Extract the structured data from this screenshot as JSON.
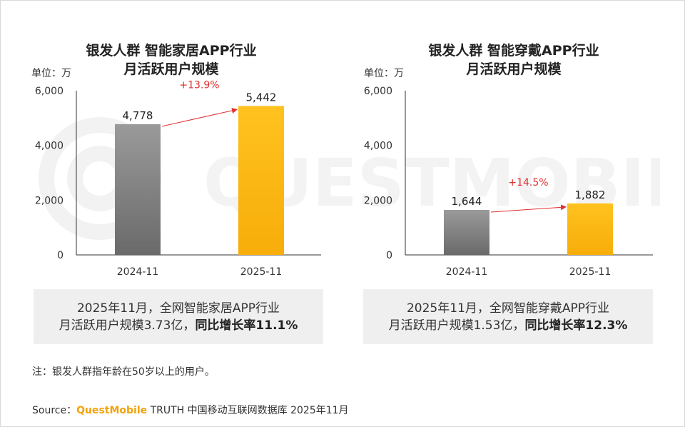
{
  "chart_data": [
    {
      "type": "bar",
      "title_lines": [
        "银发人群 智能家居APP行业",
        "月活跃用户规模"
      ],
      "unit": "单位：万",
      "categories": [
        "2024-11",
        "2025-11"
      ],
      "values": [
        4778,
        5442
      ],
      "value_labels": [
        "4,778",
        "5,442"
      ],
      "yticks": [
        "0",
        "2,000",
        "4,000",
        "6,000"
      ],
      "ylim": [
        0,
        6000
      ],
      "growth_label": "+13.9%",
      "bar_colors": [
        "#7f7f7f",
        "#fbb817"
      ],
      "summary_line1": "2025年11月，全网智能家居APP行业",
      "summary_line2a": "月活跃用户规模3.73亿，",
      "summary_line2b": "同比增长率11.1%"
    },
    {
      "type": "bar",
      "title_lines": [
        "银发人群 智能穿戴APP行业",
        "月活跃用户规模"
      ],
      "unit": "单位：万",
      "categories": [
        "2024-11",
        "2025-11"
      ],
      "values": [
        1644,
        1882
      ],
      "value_labels": [
        "1,644",
        "1,882"
      ],
      "yticks": [
        "0",
        "2,000",
        "4,000",
        "6,000"
      ],
      "ylim": [
        0,
        6000
      ],
      "growth_label": "+14.5%",
      "bar_colors": [
        "#7f7f7f",
        "#fbb817"
      ],
      "summary_line1": "2025年11月，全网智能穿戴APP行业",
      "summary_line2a": "月活跃用户规模1.53亿，",
      "summary_line2b": "同比增长率12.3%"
    }
  ],
  "note": "注：银发人群指年龄在50岁以上的用户。",
  "source": {
    "prefix": "Source：",
    "brand": "QuestMobile",
    "rest": " TRUTH 中国移动互联网数据库 2025年11月"
  },
  "watermark": "QUESTMOBILE",
  "colors": {
    "arrow": "#e03030",
    "growth_text": "#e03030",
    "axis": "#333333"
  }
}
